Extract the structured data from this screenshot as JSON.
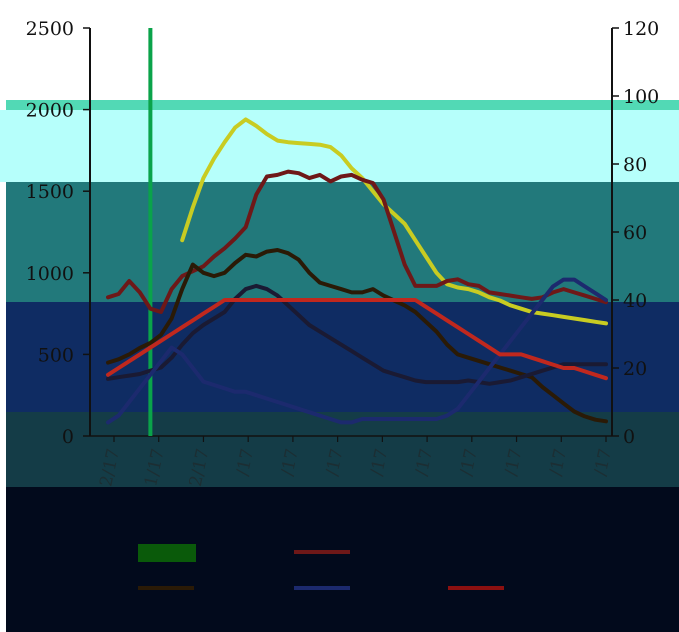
{
  "chart_data": {
    "type": "line",
    "axes": {
      "left": {
        "ylim": [
          0,
          2500
        ],
        "ticks": [
          0,
          500,
          1000,
          1500,
          2000,
          2500
        ]
      },
      "right": {
        "ylim": [
          0,
          120
        ],
        "ticks": [
          0,
          20,
          40,
          60,
          80,
          100,
          120
        ]
      },
      "x": {
        "count": 48,
        "ticks": [
          "2/17",
          "1/17",
          "2/17",
          "/17",
          "/17",
          "/17",
          "/17",
          "/17",
          "/17",
          "/17",
          "/17",
          "/17"
        ]
      }
    },
    "marker_index": 4,
    "series": [
      {
        "axis": "left",
        "color": "#c8cc22",
        "values": [
          null,
          null,
          null,
          null,
          null,
          null,
          null,
          1200,
          1400,
          1580,
          1700,
          1800,
          1890,
          1940,
          1900,
          1850,
          1810,
          1800,
          1795,
          1790,
          1785,
          1770,
          1720,
          1640,
          1580,
          1500,
          1420,
          1360,
          1300,
          1200,
          1100,
          1000,
          930,
          910,
          900,
          880,
          850,
          830,
          800,
          780,
          760,
          750,
          740,
          730,
          720,
          710,
          700,
          690
        ]
      },
      {
        "axis": "left",
        "color": "#6e1818",
        "values": [
          850,
          870,
          950,
          880,
          780,
          760,
          900,
          980,
          1010,
          1040,
          1100,
          1150,
          1210,
          1280,
          1480,
          1590,
          1600,
          1620,
          1610,
          1580,
          1600,
          1560,
          1590,
          1600,
          1570,
          1550,
          1450,
          1250,
          1050,
          920,
          920,
          920,
          950,
          960,
          930,
          920,
          880,
          870,
          860,
          850,
          840,
          850,
          880,
          900,
          880,
          860,
          840,
          820
        ]
      },
      {
        "axis": "left",
        "color": "#2a1a06",
        "values": [
          450,
          470,
          500,
          540,
          570,
          620,
          720,
          900,
          1050,
          1000,
          980,
          1000,
          1060,
          1110,
          1100,
          1130,
          1140,
          1120,
          1080,
          1000,
          940,
          920,
          900,
          880,
          880,
          900,
          860,
          830,
          800,
          760,
          700,
          640,
          560,
          500,
          480,
          460,
          440,
          420,
          400,
          380,
          360,
          300,
          250,
          200,
          150,
          120,
          100,
          90
        ]
      },
      {
        "axis": "left",
        "color": "#1a1a33",
        "values": [
          350,
          360,
          370,
          380,
          400,
          420,
          480,
          560,
          630,
          680,
          720,
          760,
          840,
          900,
          920,
          900,
          860,
          800,
          740,
          680,
          640,
          600,
          560,
          520,
          480,
          440,
          400,
          380,
          360,
          340,
          330,
          330,
          330,
          330,
          340,
          330,
          320,
          330,
          340,
          360,
          380,
          400,
          420,
          440,
          440,
          440,
          440,
          440
        ]
      },
      {
        "axis": "right",
        "color": "#1c2a6e",
        "values": [
          4,
          6,
          10,
          14,
          18,
          22,
          26,
          24,
          20,
          16,
          15,
          14,
          13,
          13,
          12,
          11,
          10,
          9,
          8,
          7,
          6,
          5,
          4,
          4,
          5,
          5,
          5,
          5,
          5,
          5,
          5,
          5,
          6,
          8,
          12,
          16,
          20,
          24,
          28,
          32,
          36,
          40,
          44,
          46,
          46,
          44,
          42,
          40
        ]
      },
      {
        "axis": "right",
        "color": "#c0281e",
        "values": [
          18,
          20,
          22,
          24,
          26,
          28,
          30,
          32,
          34,
          36,
          38,
          40,
          40,
          40,
          40,
          40,
          40,
          40,
          40,
          40,
          40,
          40,
          40,
          40,
          40,
          40,
          40,
          40,
          40,
          40,
          38,
          36,
          34,
          32,
          30,
          28,
          26,
          24,
          24,
          24,
          23,
          22,
          21,
          20,
          20,
          19,
          18,
          17
        ]
      }
    ]
  }
}
